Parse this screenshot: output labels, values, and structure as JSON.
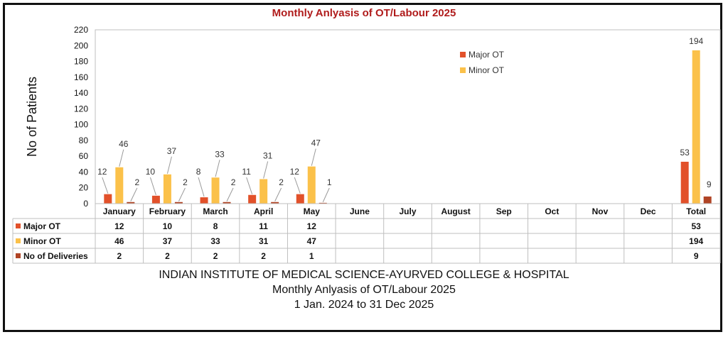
{
  "colors": {
    "major": "#e2512a",
    "minor": "#fbc14a",
    "deliveries": "#b04425",
    "title": "#b01c1c"
  },
  "chart_data": {
    "type": "bar",
    "title": "Monthly Anlyasis of OT/Labour 2025",
    "xlabel": "",
    "ylabel": "No of Patients",
    "ylim": [
      0,
      220
    ],
    "yticks": [
      0,
      20,
      40,
      60,
      80,
      100,
      120,
      140,
      160,
      180,
      200,
      220
    ],
    "grid": false,
    "legend_position": "top-right",
    "legend": [
      "Major OT",
      "Minor OT"
    ],
    "categories": [
      "January",
      "February",
      "March",
      "April",
      "May",
      "June",
      "July",
      "August",
      "Sep",
      "Oct",
      "Nov",
      "Dec",
      "Total"
    ],
    "series": [
      {
        "name": "Major OT",
        "values": [
          12,
          10,
          8,
          11,
          12,
          null,
          null,
          null,
          null,
          null,
          null,
          null,
          53
        ]
      },
      {
        "name": "Minor OT",
        "values": [
          46,
          37,
          33,
          31,
          47,
          null,
          null,
          null,
          null,
          null,
          null,
          null,
          194
        ]
      },
      {
        "name": "No of Deliveries",
        "values": [
          2,
          2,
          2,
          2,
          1,
          null,
          null,
          null,
          null,
          null,
          null,
          null,
          9
        ]
      }
    ]
  },
  "footer": {
    "line1": "INDIAN INSTITUTE OF MEDICAL SCIENCE-AYURVED COLLEGE & HOSPITAL",
    "line2": "Monthly Anlyasis of OT/Labour 2025",
    "line3": "1 Jan. 2024 to 31 Dec 2025"
  }
}
